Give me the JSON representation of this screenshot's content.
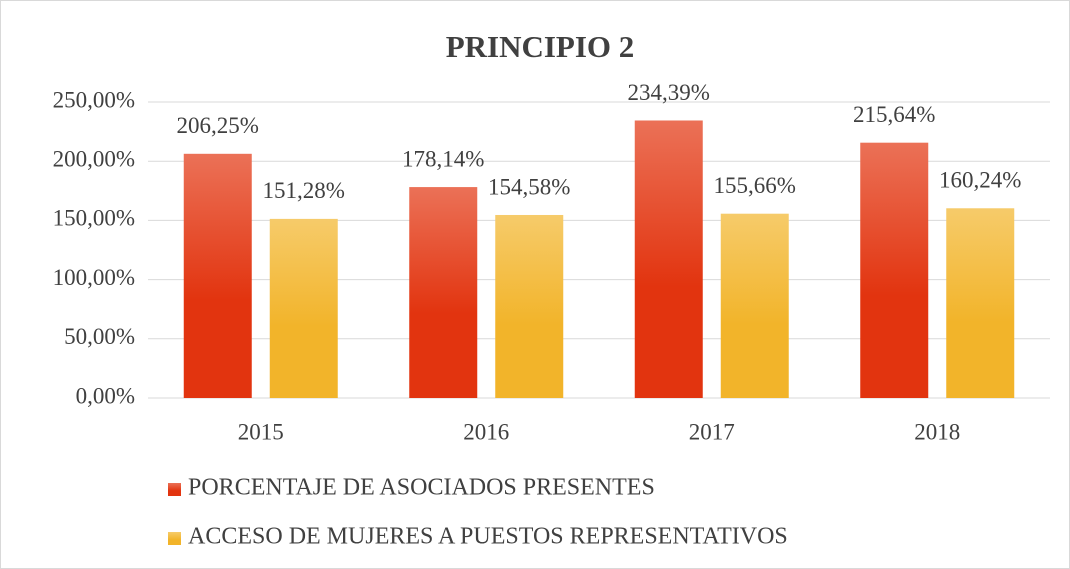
{
  "chart_data": {
    "type": "bar",
    "title": "PRINCIPIO 2",
    "categories": [
      "2015",
      "2016",
      "2017",
      "2018"
    ],
    "series": [
      {
        "name": "PORCENTAJE DE ASOCIADOS PRESENTES",
        "color": "#e2340f",
        "values": [
          206.25,
          178.14,
          234.39,
          215.64
        ],
        "value_labels": [
          "206,25%",
          "178,14%",
          "234,39%",
          "215,64%"
        ]
      },
      {
        "name": "ACCESO DE MUJERES A PUESTOS REPRESENTATIVOS",
        "color": "#f2b42a",
        "values": [
          151.28,
          154.58,
          155.66,
          160.24
        ],
        "value_labels": [
          "151,28%",
          "154,58%",
          "155,66%",
          "160,24%"
        ]
      }
    ],
    "ylim": [
      0,
      250
    ],
    "yticks": [
      {
        "value": 0,
        "label": "0,00%"
      },
      {
        "value": 50,
        "label": "50,00%"
      },
      {
        "value": 100,
        "label": "100,00%"
      },
      {
        "value": 150,
        "label": "150,00%"
      },
      {
        "value": 200,
        "label": "200,00%"
      },
      {
        "value": 250,
        "label": "250,00%"
      }
    ],
    "grid": true,
    "legend": "bottom"
  }
}
